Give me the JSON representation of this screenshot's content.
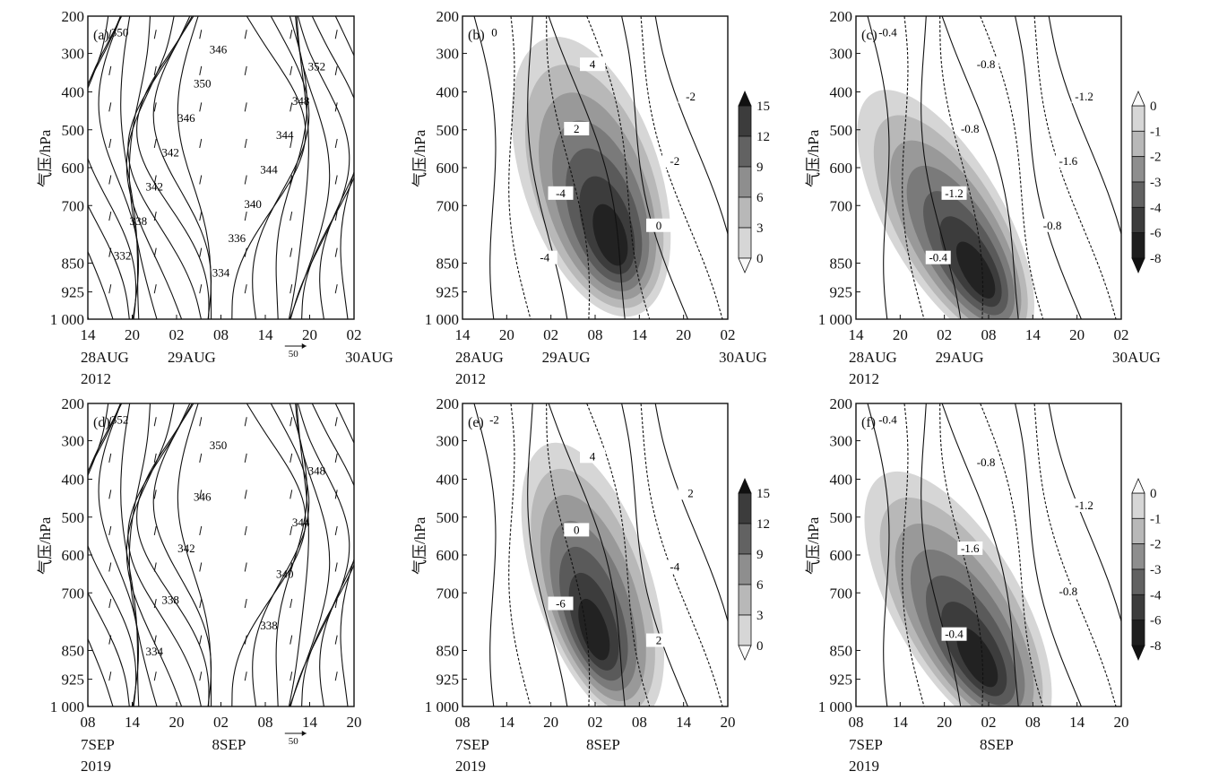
{
  "chart_data": [
    {
      "panel": "(a)",
      "type": "heatmap",
      "ylabel": "气压/hPa",
      "yticks": [
        "200",
        "300",
        "400",
        "500",
        "600",
        "700",
        "850",
        "925",
        "1 000"
      ],
      "xticks": [
        "14",
        "20",
        "02",
        "08",
        "14",
        "20",
        "02"
      ],
      "date_labels": [
        "28AUG",
        "29AUG",
        "30AUG"
      ],
      "year_label": "2012",
      "ref_arrow_label": "50",
      "contour_labels": [
        "350",
        "346",
        "352",
        "350",
        "348",
        "346",
        "344",
        "342",
        "344",
        "342",
        "340",
        "338",
        "336",
        "332",
        "334"
      ],
      "shading": false
    },
    {
      "panel": "(b)",
      "type": "heatmap",
      "ylabel": "气压/hPa",
      "yticks": [
        "200",
        "300",
        "400",
        "500",
        "600",
        "700",
        "850",
        "925",
        "1 000"
      ],
      "xticks": [
        "14",
        "20",
        "02",
        "08",
        "14",
        "20",
        "02"
      ],
      "date_labels": [
        "28AUG",
        "29AUG",
        "30AUG"
      ],
      "year_label": "2012",
      "contour_labels": [
        "0",
        "4",
        "-2",
        "2",
        "-2",
        "-4",
        "0",
        "-4"
      ],
      "shading": true,
      "colorbar": {
        "ticks": [
          "15",
          "12",
          "9",
          "6",
          "3",
          "0"
        ]
      }
    },
    {
      "panel": "(c)",
      "type": "heatmap",
      "ylabel": "气压/hPa",
      "yticks": [
        "200",
        "300",
        "400",
        "500",
        "600",
        "700",
        "850",
        "925",
        "1 000"
      ],
      "xticks": [
        "14",
        "20",
        "02",
        "08",
        "14",
        "20",
        "02"
      ],
      "date_labels": [
        "28AUG",
        "29AUG",
        "30AUG"
      ],
      "year_label": "2012",
      "contour_labels": [
        "-0.4",
        "-0.8",
        "-1.2",
        "-0.8",
        "-1.6",
        "-1.2",
        "-0.8",
        "-0.4"
      ],
      "shading": true,
      "colorbar": {
        "ticks": [
          "0",
          "-1",
          "-2",
          "-3",
          "-4",
          "-6",
          "-8"
        ]
      }
    },
    {
      "panel": "(d)",
      "type": "heatmap",
      "ylabel": "气压/hPa",
      "yticks": [
        "200",
        "300",
        "400",
        "500",
        "600",
        "700",
        "850",
        "925",
        "1 000"
      ],
      "xticks": [
        "08",
        "14",
        "20",
        "02",
        "08",
        "14",
        "20"
      ],
      "date_labels": [
        "7SEP",
        "8SEP"
      ],
      "year_label": "2019",
      "ref_arrow_label": "50",
      "contour_labels": [
        "352",
        "350",
        "348",
        "346",
        "344",
        "342",
        "340",
        "338",
        "338",
        "334"
      ],
      "shading": false
    },
    {
      "panel": "(e)",
      "type": "heatmap",
      "ylabel": "气压/hPa",
      "yticks": [
        "200",
        "300",
        "400",
        "500",
        "600",
        "700",
        "850",
        "925",
        "1 000"
      ],
      "xticks": [
        "08",
        "14",
        "20",
        "02",
        "08",
        "14",
        "20"
      ],
      "date_labels": [
        "7SEP",
        "8SEP"
      ],
      "year_label": "2019",
      "contour_labels": [
        "-2",
        "4",
        "2",
        "0",
        "-4",
        "-6",
        "2"
      ],
      "shading": true,
      "colorbar": {
        "ticks": [
          "15",
          "12",
          "9",
          "6",
          "3",
          "0"
        ]
      }
    },
    {
      "panel": "(f)",
      "type": "heatmap",
      "ylabel": "气压/hPa",
      "yticks": [
        "200",
        "300",
        "400",
        "500",
        "600",
        "700",
        "850",
        "925",
        "1 000"
      ],
      "xticks": [
        "08",
        "14",
        "20",
        "02",
        "08",
        "14",
        "20"
      ],
      "date_labels": [
        "7SEP",
        "8SEP"
      ],
      "year_label": "2019",
      "contour_labels": [
        "-0.4",
        "-0.8",
        "-1.2",
        "-1.6",
        "-0.8",
        "-0.4"
      ],
      "shading": true,
      "colorbar": {
        "ticks": [
          "0",
          "-1",
          "-2",
          "-3",
          "-4",
          "-6",
          "-8"
        ]
      }
    }
  ]
}
